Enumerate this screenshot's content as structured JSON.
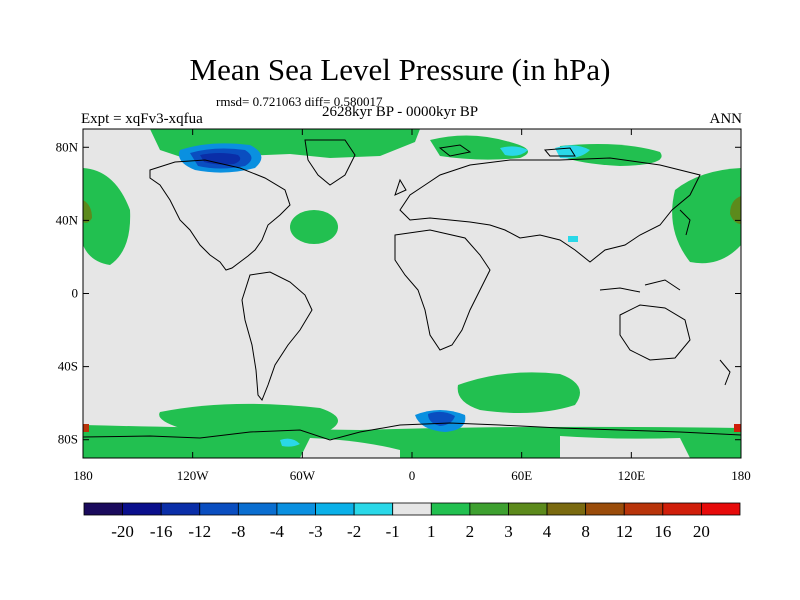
{
  "header": {
    "title": "Mean Sea Level Pressure (in hPa)",
    "stats": "rmsd= 0.721063 diff= 0.580017",
    "experiment": "Expt = xqFv3-xqfua",
    "period": "2628kyr BP - 0000kyr BP",
    "season": "ANN"
  },
  "axes": {
    "lat_ticks": [
      {
        "label": "80N",
        "value": 80
      },
      {
        "label": "40N",
        "value": 40
      },
      {
        "label": "0",
        "value": 0
      },
      {
        "label": "40S",
        "value": -40
      },
      {
        "label": "80S",
        "value": -80
      }
    ],
    "lon_ticks": [
      {
        "label": "180",
        "value": -180
      },
      {
        "label": "120W",
        "value": -120
      },
      {
        "label": "60W",
        "value": -60
      },
      {
        "label": "0",
        "value": 0
      },
      {
        "label": "60E",
        "value": 60
      },
      {
        "label": "120E",
        "value": 120
      },
      {
        "label": "180",
        "value": 180
      }
    ],
    "lat_range": [
      -90,
      90
    ],
    "lon_range": [
      -180,
      180
    ]
  },
  "colorbar": {
    "colors": [
      "#1a0a5c",
      "#0a0f8c",
      "#0a2ea8",
      "#0a4ec0",
      "#0a6ed0",
      "#0a90e0",
      "#0ab0e8",
      "#2ad8e8",
      "#e6e6e6",
      "#22c050",
      "#3ea030",
      "#5c8a1c",
      "#7a6a10",
      "#9a4c0a",
      "#b8340a",
      "#d01e0a",
      "#e60a0a"
    ],
    "labels": [
      "-20",
      "-16",
      "-12",
      "-8",
      "-4",
      "-3",
      "-2",
      "-1",
      "1",
      "2",
      "3",
      "4",
      "8",
      "12",
      "16",
      "20"
    ]
  },
  "map_regions": [
    {
      "name": "arctic-canada-low",
      "level": -4,
      "color": "#0a6ed0"
    },
    {
      "name": "antarctic-weddell-low",
      "level": -3,
      "color": "#0a90e0"
    },
    {
      "name": "north-pacific-high",
      "level": 2,
      "color": "#22c050"
    },
    {
      "name": "southern-ocean-high",
      "level": 2,
      "color": "#22c050"
    },
    {
      "name": "north-atlantic-high",
      "level": 2,
      "color": "#22c050"
    }
  ]
}
